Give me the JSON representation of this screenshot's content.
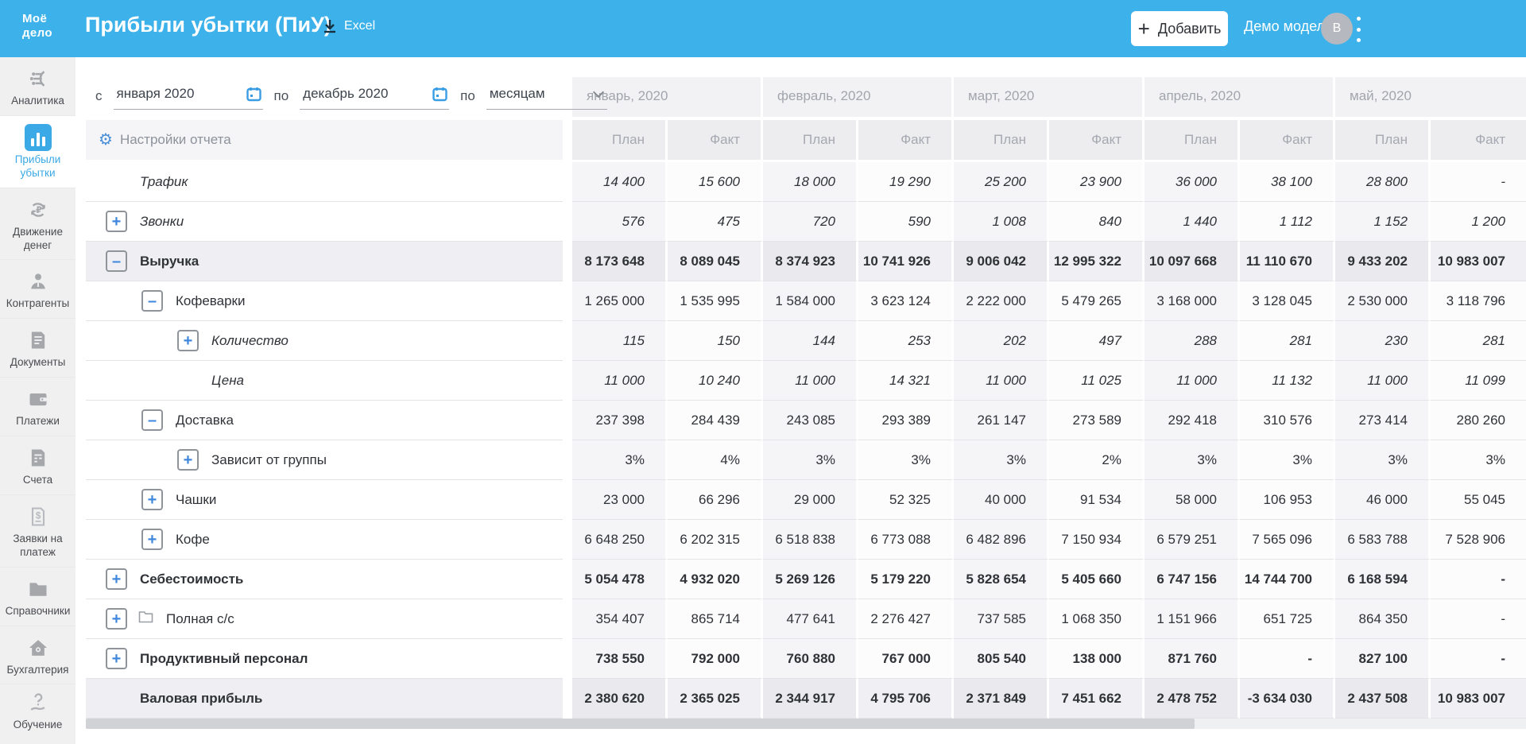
{
  "header": {
    "logo_line1": "Моё",
    "logo_line2": "дело",
    "title": "Прибыли убытки (ПиУ)",
    "excel_label": "Excel",
    "add_label": "Добавить",
    "account_label": "Демо модель",
    "avatar_initial": "B"
  },
  "sidebar": {
    "items": [
      {
        "id": "analytics",
        "label": "Аналитика",
        "icon": "analytics-icon",
        "active": false,
        "pinned_bottom": false
      },
      {
        "id": "profit-loss",
        "label": "Прибыли убытки",
        "icon": "bar-chart-icon",
        "active": true,
        "pinned_bottom": false
      },
      {
        "id": "cash-flow",
        "label": "Движение денег",
        "icon": "ruble-cycle-icon",
        "active": false,
        "pinned_bottom": false
      },
      {
        "id": "counterparties",
        "label": "Контрагенты",
        "icon": "person-icon",
        "active": false,
        "pinned_bottom": false
      },
      {
        "id": "documents",
        "label": "Документы",
        "icon": "document-icon",
        "active": false,
        "pinned_bottom": false
      },
      {
        "id": "payments",
        "label": "Платежи",
        "icon": "wallet-icon",
        "active": false,
        "pinned_bottom": false
      },
      {
        "id": "invoices",
        "label": "Счета",
        "icon": "invoice-icon",
        "active": false,
        "pinned_bottom": false
      },
      {
        "id": "payment-requests",
        "label": "Заявки на платеж",
        "icon": "payment-request-icon",
        "active": false,
        "pinned_bottom": false
      },
      {
        "id": "references",
        "label": "Справочники",
        "icon": "folder-icon",
        "active": false,
        "pinned_bottom": false
      },
      {
        "id": "accounting",
        "label": "Бухгалтерия",
        "icon": "home-icon",
        "active": false,
        "pinned_bottom": false
      },
      {
        "id": "training",
        "label": "Обучение",
        "icon": "question-hand-icon",
        "active": false,
        "pinned_bottom": true
      }
    ]
  },
  "filters": {
    "from_label": "с",
    "from_value": "января 2020",
    "to_label": "по",
    "to_value": "декабрь 2020",
    "group_label": "по",
    "group_value": "месяцам"
  },
  "report": {
    "settings_label": "Настройки отчета",
    "months": [
      "январь, 2020",
      "февраль, 2020",
      "март, 2020",
      "апрель, 2020",
      "май, 2020"
    ],
    "subcolumns": [
      "План",
      "Факт"
    ],
    "rows": [
      {
        "label": "Трафик",
        "level": 0,
        "expand": null,
        "style": "italic",
        "highlight": false,
        "folder": false,
        "values": [
          "14 400",
          "15 600",
          "18 000",
          "19 290",
          "25 200",
          "23 900",
          "36 000",
          "38 100",
          "28 800",
          "-"
        ]
      },
      {
        "label": "Звонки",
        "level": 0,
        "expand": "plus",
        "style": "italic",
        "highlight": false,
        "folder": false,
        "values": [
          "576",
          "475",
          "720",
          "590",
          "1 008",
          "840",
          "1 440",
          "1 112",
          "1 152",
          "1 200"
        ]
      },
      {
        "label": "Выручка",
        "level": 0,
        "expand": "minus",
        "style": "bold",
        "highlight": true,
        "folder": false,
        "values": [
          "8 173 648",
          "8 089 045",
          "8 374 923",
          "10 741 926",
          "9 006 042",
          "12 995 322",
          "10 097 668",
          "11 110 670",
          "9 433 202",
          "10 983 007"
        ]
      },
      {
        "label": "Кофеварки",
        "level": 1,
        "expand": "minus",
        "style": "regular",
        "highlight": false,
        "folder": false,
        "values": [
          "1 265 000",
          "1 535 995",
          "1 584 000",
          "3 623 124",
          "2 222 000",
          "5 479 265",
          "3 168 000",
          "3 128 045",
          "2 530 000",
          "3 118 796"
        ]
      },
      {
        "label": "Количество",
        "level": 2,
        "expand": "plus",
        "style": "italic",
        "highlight": false,
        "folder": false,
        "values": [
          "115",
          "150",
          "144",
          "253",
          "202",
          "497",
          "288",
          "281",
          "230",
          "281"
        ]
      },
      {
        "label": "Цена",
        "level": 2,
        "expand": null,
        "style": "italic",
        "highlight": false,
        "folder": false,
        "values": [
          "11 000",
          "10 240",
          "11 000",
          "14 321",
          "11 000",
          "11 025",
          "11 000",
          "11 132",
          "11 000",
          "11 099"
        ]
      },
      {
        "label": "Доставка",
        "level": 1,
        "expand": "minus",
        "style": "regular",
        "highlight": false,
        "folder": false,
        "values": [
          "237 398",
          "284 439",
          "243 085",
          "293 389",
          "261 147",
          "273 589",
          "292 418",
          "310 576",
          "273 414",
          "280 260"
        ]
      },
      {
        "label": "Зависит от группы",
        "level": 2,
        "expand": "plus",
        "style": "regular",
        "highlight": false,
        "folder": false,
        "values": [
          "3%",
          "4%",
          "3%",
          "3%",
          "3%",
          "2%",
          "3%",
          "3%",
          "3%",
          "3%"
        ]
      },
      {
        "label": "Чашки",
        "level": 1,
        "expand": "plus",
        "style": "regular",
        "highlight": false,
        "folder": false,
        "values": [
          "23 000",
          "66 296",
          "29 000",
          "52 325",
          "40 000",
          "91 534",
          "58 000",
          "106 953",
          "46 000",
          "55 045"
        ]
      },
      {
        "label": "Кофе",
        "level": 1,
        "expand": "plus",
        "style": "regular",
        "highlight": false,
        "folder": false,
        "values": [
          "6 648 250",
          "6 202 315",
          "6 518 838",
          "6 773 088",
          "6 482 896",
          "7 150 934",
          "6 579 251",
          "7 565 096",
          "6 583 788",
          "7 528 906"
        ]
      },
      {
        "label": "Себестоимость",
        "level": 0,
        "expand": "plus",
        "style": "bold",
        "highlight": false,
        "folder": false,
        "values": [
          "5 054 478",
          "4 932 020",
          "5 269 126",
          "5 179 220",
          "5 828 654",
          "5 405 660",
          "6 747 156",
          "14 744 700",
          "6 168 594",
          "-"
        ]
      },
      {
        "label": "Полная с/с",
        "level": 0,
        "expand": "plus",
        "style": "regular",
        "highlight": false,
        "folder": true,
        "values": [
          "354 407",
          "865 714",
          "477 641",
          "2 276 427",
          "737 585",
          "1 068 350",
          "1 151 966",
          "651 725",
          "864 350",
          "-"
        ]
      },
      {
        "label": "Продуктивный персонал",
        "level": 0,
        "expand": "plus",
        "style": "bold",
        "highlight": false,
        "folder": false,
        "values": [
          "738 550",
          "792 000",
          "760 880",
          "767 000",
          "805 540",
          "138 000",
          "871 760",
          "-",
          "827 100",
          "-"
        ]
      },
      {
        "label": "Валовая прибыль",
        "level": 0,
        "expand": null,
        "style": "bold",
        "highlight": true,
        "folder": false,
        "values": [
          "2 380 620",
          "2 365 025",
          "2 344 917",
          "4 795 706",
          "2 371 849",
          "7 451 662",
          "2 478 752",
          "-3 634 030",
          "2 437 508",
          "10 983 007"
        ]
      }
    ]
  },
  "colors": {
    "header_blue": "#3db2ea",
    "accent_blue": "#3aa9e6",
    "expand_blue": "#3f87dd",
    "highlight_row": "#efeff3",
    "plan_column": "#f5f5f8",
    "header_text_gray": "#a6a9b1"
  }
}
